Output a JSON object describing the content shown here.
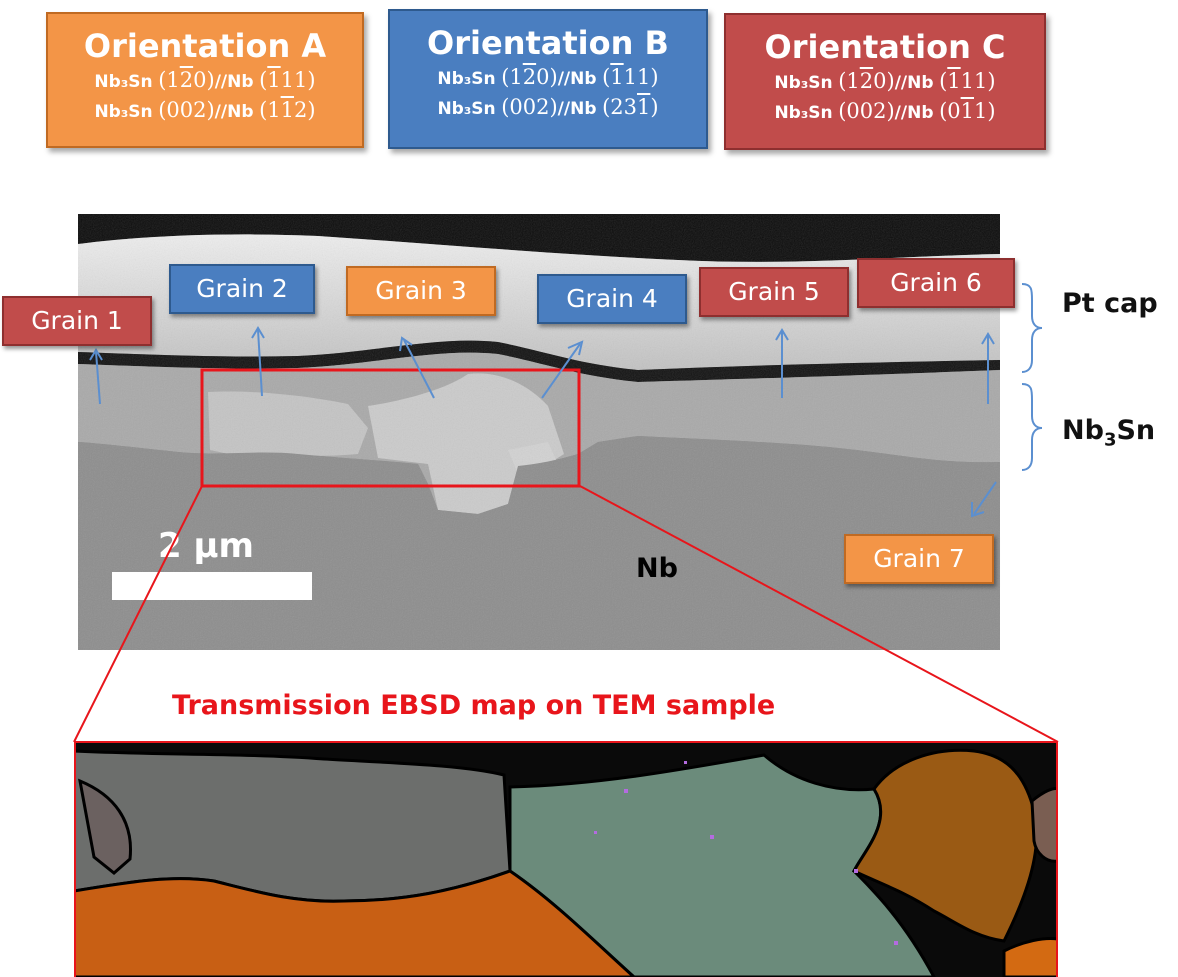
{
  "orientations": [
    {
      "id": "A",
      "title": "Orientation A",
      "color": "#f39547",
      "line1": {
        "comp": "Nb₃Sn",
        "plane1": [
          "(1",
          "2",
          "0)"
        ],
        "sep": "//Nb",
        "plane2": [
          "(",
          "1",
          "11)"
        ]
      },
      "line2": {
        "comp": "Nb₃Sn",
        "plane1": [
          "(002)"
        ],
        "sep": "//Nb",
        "plane2": [
          "(1",
          "1",
          "2)"
        ]
      }
    },
    {
      "id": "B",
      "title": "Orientation B",
      "color": "#4a7ec0",
      "line1": {
        "comp": "Nb₃Sn",
        "plane1": [
          "(1",
          "2",
          "0)"
        ],
        "sep": "//Nb",
        "plane2": [
          "(",
          "1",
          "11)"
        ]
      },
      "line2": {
        "comp": "Nb₃Sn",
        "plane1": [
          "(002)"
        ],
        "sep": "//Nb",
        "plane2": [
          "(23",
          "1",
          ")"
        ]
      }
    },
    {
      "id": "C",
      "title": "Orientation C",
      "color": "#c14c4b",
      "line1": {
        "comp": "Nb₃Sn",
        "plane1": [
          "(1",
          "2",
          "0)"
        ],
        "sep": "//Nb",
        "plane2": [
          "(",
          "1",
          "11)"
        ]
      },
      "line2": {
        "comp": "Nb₃Sn",
        "plane1": [
          "(002)"
        ],
        "sep": "//Nb",
        "plane2": [
          "(0",
          "1",
          "1)"
        ]
      }
    }
  ],
  "grains": [
    {
      "label": "Grain 1",
      "orientation": "C"
    },
    {
      "label": "Grain 2",
      "orientation": "B"
    },
    {
      "label": "Grain 3",
      "orientation": "A"
    },
    {
      "label": "Grain 4",
      "orientation": "B"
    },
    {
      "label": "Grain 5",
      "orientation": "C"
    },
    {
      "label": "Grain 6",
      "orientation": "C"
    },
    {
      "label": "Grain 7",
      "orientation": "A"
    }
  ],
  "layer_labels": {
    "pt_cap": "Pt cap",
    "nb3sn_base": "Nb",
    "nb3sn_sub": "3",
    "nb3sn_tail": "Sn",
    "nb": "Nb"
  },
  "scale_bar": {
    "label": "2 μm"
  },
  "ebsd": {
    "title": "Transmission EBSD map on TEM sample"
  },
  "colors": {
    "orientation_a": "#f39547",
    "orientation_b": "#4a7ec0",
    "orientation_c": "#c14c4b",
    "highlight_box": "#e8151b",
    "arrow": "#5b8fd0"
  }
}
